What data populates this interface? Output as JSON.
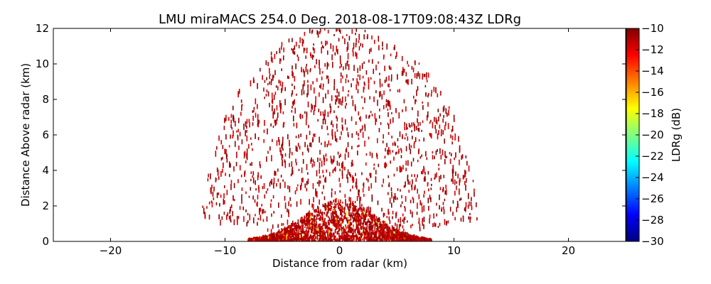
{
  "chart_data": {
    "type": "scatter",
    "subtype": "radar PPI-RHI scan (range-height)",
    "title": "LMU miraMACS 254.0 Deg. 2018-08-17T09:08:43Z  LDRg",
    "xlabel": "Distance from radar (km)",
    "ylabel": "Distance Above radar  (km)",
    "xlim": [
      -25,
      25
    ],
    "ylim": [
      0,
      12
    ],
    "x_ticks": [
      -20,
      -10,
      0,
      10,
      20
    ],
    "x_tick_labels": [
      "−20",
      "−10",
      "0",
      "10",
      "20"
    ],
    "y_ticks": [
      0,
      2,
      4,
      6,
      8,
      10,
      12
    ],
    "y_tick_labels": [
      "0",
      "2",
      "4",
      "6",
      "8",
      "10",
      "12"
    ],
    "grid": false,
    "colorbar": {
      "label": "LDRg (dB)",
      "range": [
        -30,
        -10
      ],
      "ticks": [
        -10,
        -12,
        -14,
        -16,
        -18,
        -20,
        -22,
        -24,
        -26,
        -28,
        -30
      ],
      "tick_labels": [
        "−10",
        "−12",
        "−14",
        "−16",
        "−18",
        "−20",
        "−22",
        "−24",
        "−26",
        "−28",
        "−30"
      ],
      "colormap": "jet",
      "colors": [
        "#00007f",
        "#0000ff",
        "#007fff",
        "#00ffff",
        "#7fff7f",
        "#ffff00",
        "#ff7f00",
        "#ff0000",
        "#7f0000"
      ]
    },
    "scan": {
      "elevation_range_deg": [
        0,
        180
      ],
      "max_range_km": 12.2,
      "low_elevation_cutoff_right_km": 12.5,
      "dense_echo_top_km": 2.3,
      "dominant_value_db": -11,
      "sparse_value_range_db": [
        -12,
        -10
      ]
    }
  }
}
